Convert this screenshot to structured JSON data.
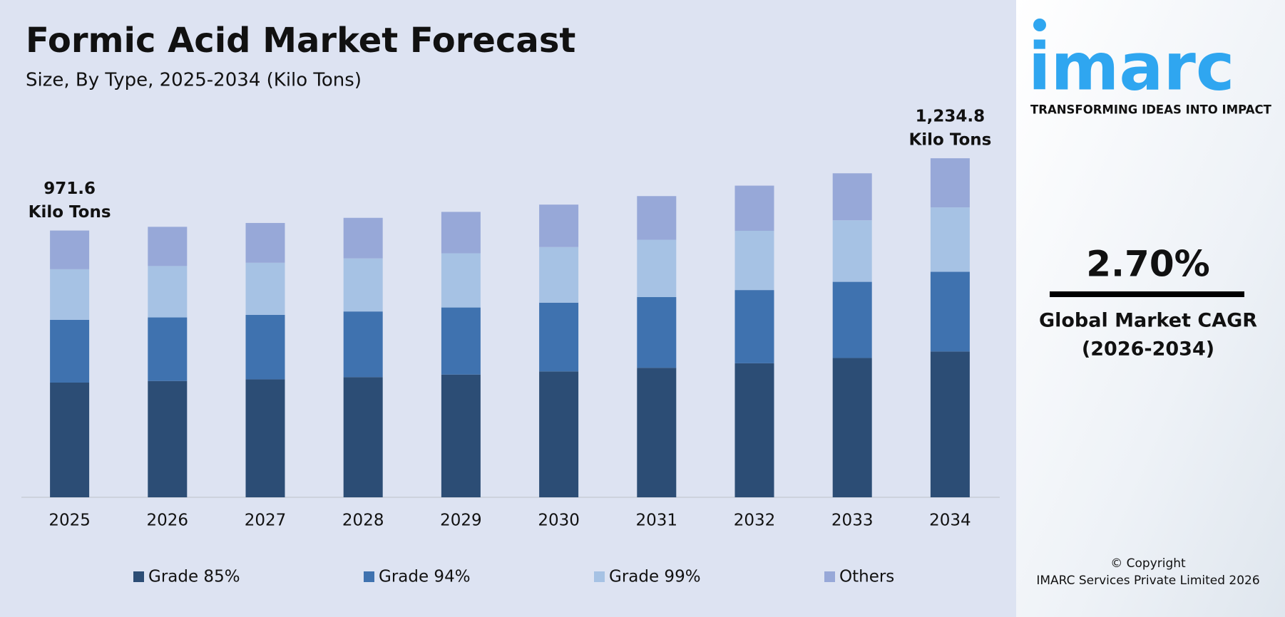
{
  "chart_data": {
    "type": "stacked_bar",
    "title": "Formic Acid Market Forecast",
    "subtitle": "Size, By Type, 2025-2034 (Kilo Tons)",
    "categories": [
      "2025",
      "2026",
      "2027",
      "2028",
      "2029",
      "2030",
      "2031",
      "2032",
      "2033",
      "2034"
    ],
    "series": [
      {
        "name": "Grade 85%",
        "color": "#2c4d75",
        "values": [
          417.8,
          423.6,
          429.6,
          437.6,
          447.0,
          458.4,
          471.7,
          488.1,
          507.4,
          531.0
        ]
      },
      {
        "name": "Grade 94%",
        "color": "#3f72af",
        "values": [
          228.3,
          231.5,
          234.8,
          239.2,
          244.3,
          250.5,
          257.8,
          266.7,
          277.3,
          290.2
        ]
      },
      {
        "name": "Grade 99%",
        "color": "#a6c2e4",
        "values": [
          184.6,
          187.2,
          189.8,
          193.4,
          197.5,
          202.5,
          208.4,
          215.7,
          224.2,
          234.6
        ]
      },
      {
        "name": "Others",
        "color": "#97a8d8",
        "values": [
          140.9,
          142.8,
          144.9,
          147.6,
          150.7,
          154.6,
          159.1,
          164.6,
          171.1,
          179.0
        ]
      }
    ],
    "ylim": [
      0,
      1300
    ],
    "annotations": [
      {
        "lines": [
          "971.6",
          "Kilo Tons"
        ]
      },
      {
        "lines": [
          "1,234.8",
          "Kilo Tons"
        ]
      }
    ]
  },
  "sidebar": {
    "logo": "imarc",
    "tagline": "TRANSFORMING IDEAS INTO IMPACT",
    "cagr": "2.70%",
    "cagr_label": [
      "Global Market CAGR",
      "(2026-2034)"
    ],
    "copyright": [
      "© Copyright",
      "IMARC Services Private Limited 2026"
    ]
  }
}
